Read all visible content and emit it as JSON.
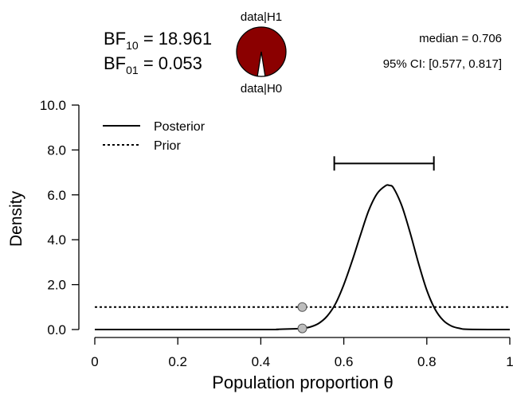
{
  "chart_data": {
    "type": "line",
    "xlabel": "Population proportion θ",
    "ylabel": "Density",
    "xlim": [
      0,
      1
    ],
    "ylim": [
      0,
      10
    ],
    "x_ticks": [
      "0",
      "0.2",
      "0.4",
      "0.6",
      "0.8",
      "1"
    ],
    "y_ticks": [
      "0.0",
      "2.0",
      "4.0",
      "6.0",
      "8.0",
      "10.0"
    ],
    "legend_position": "top-left",
    "series": [
      {
        "name": "Posterior",
        "style": "solid",
        "x": [
          0,
          0.4,
          0.44,
          0.48,
          0.5,
          0.52,
          0.54,
          0.56,
          0.58,
          0.6,
          0.62,
          0.64,
          0.66,
          0.68,
          0.7,
          0.71,
          0.72,
          0.74,
          0.76,
          0.78,
          0.8,
          0.82,
          0.84,
          0.86,
          0.88,
          0.9,
          1
        ],
        "y": [
          0,
          0.0,
          0.01,
          0.03,
          0.05,
          0.12,
          0.28,
          0.6,
          1.15,
          2.0,
          3.05,
          4.2,
          5.3,
          6.05,
          6.4,
          6.42,
          6.3,
          5.5,
          4.3,
          2.95,
          1.75,
          0.9,
          0.4,
          0.15,
          0.05,
          0.01,
          0
        ]
      },
      {
        "name": "Prior",
        "style": "dashed",
        "x": [
          0,
          1
        ],
        "y": [
          1,
          1
        ]
      }
    ],
    "points": [
      {
        "x": 0.5,
        "y": 1.0,
        "color": "#bdbdbd"
      },
      {
        "x": 0.5,
        "y": 0.05,
        "color": "#bdbdbd"
      }
    ],
    "ci_bar": {
      "lower": 0.577,
      "upper": 0.817,
      "y": 7.4
    },
    "pie": {
      "h1_fraction": 0.9497,
      "h1_color": "#8b0000",
      "h0_color": "#ffffff"
    }
  },
  "stats": {
    "bf10_main": "BF",
    "bf10_sub": "10",
    "bf10_value": " = 18.961",
    "bf01_main": "BF",
    "bf01_sub": "01",
    "bf01_value": " = 0.053",
    "median": "median = 0.706",
    "ci": "95% CI: [0.577, 0.817]",
    "pie_top_label": "data|H1",
    "pie_bottom_label": "data|H0"
  }
}
